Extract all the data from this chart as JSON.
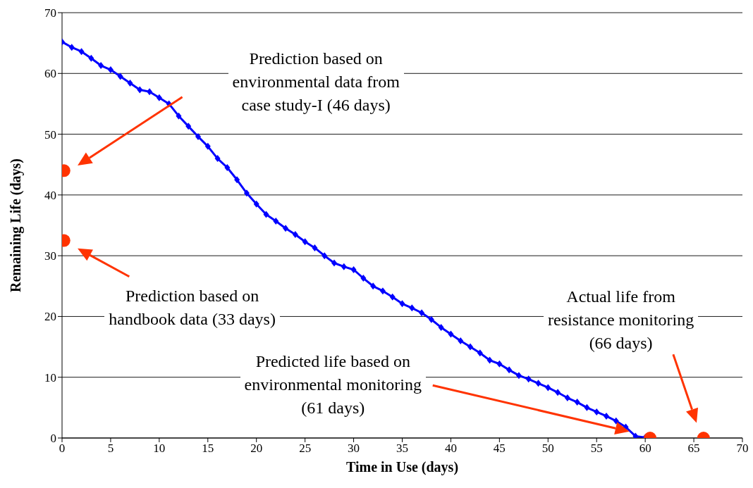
{
  "chart_data": {
    "type": "line",
    "xlabel": "Time in Use (days)",
    "ylabel": "Remaining Life (days)",
    "xlim": [
      0,
      70
    ],
    "xticks": [
      0,
      5,
      10,
      15,
      20,
      25,
      30,
      35,
      40,
      45,
      50,
      55,
      60,
      65,
      70
    ],
    "ylim": [
      0,
      70
    ],
    "yticks": [
      0,
      10,
      20,
      30,
      40,
      50,
      60,
      70
    ],
    "grid": "y",
    "legend": false,
    "series": [
      {
        "color": "#0000ff",
        "marker": "diamond",
        "line_style": "solid",
        "x": [
          0,
          1,
          2,
          3,
          4,
          5,
          6,
          7,
          8,
          9,
          10,
          11,
          12,
          13,
          14,
          15,
          16,
          17,
          18,
          19,
          20,
          21,
          22,
          23,
          24,
          25,
          26,
          27,
          28,
          29,
          30,
          31,
          32,
          33,
          34,
          35,
          36,
          37,
          38,
          39,
          40,
          41,
          42,
          43,
          44,
          45,
          46,
          47,
          48,
          49,
          50,
          51,
          52,
          53,
          54,
          55,
          56,
          57,
          58,
          59,
          60
        ],
        "values": [
          65.2,
          64.3,
          63.6,
          62.5,
          61.3,
          60.6,
          59.5,
          58.4,
          57.3,
          57,
          56,
          55,
          53,
          51.3,
          49.6,
          48,
          46,
          44.5,
          42.5,
          40.3,
          38.5,
          36.8,
          35.7,
          34.5,
          33.5,
          32.3,
          31.3,
          30,
          28.8,
          28.2,
          27.7,
          26.3,
          25,
          24.2,
          23.2,
          22.1,
          21.4,
          20.6,
          19.5,
          18.2,
          17.1,
          16,
          15,
          14,
          12.8,
          12.2,
          11.2,
          10.3,
          9.7,
          9,
          8.3,
          7.5,
          6.6,
          5.9,
          5,
          4.3,
          3.6,
          2.8,
          1.8,
          0.3,
          0.1
        ]
      },
      {
        "type": "scatter",
        "color": "#ff3300",
        "marker": "circle",
        "x": [
          0.2,
          0.2,
          60.5,
          66
        ],
        "values": [
          44,
          32.5,
          0,
          0
        ]
      }
    ],
    "annotations": [
      "Prediction based on environmental data from case study-I (46 days)",
      "Prediction based on handbook data (33 days)",
      "Predicted life based on environmental monitoring (61 days)",
      "Actual life from resistance monitoring (66 days)"
    ]
  }
}
